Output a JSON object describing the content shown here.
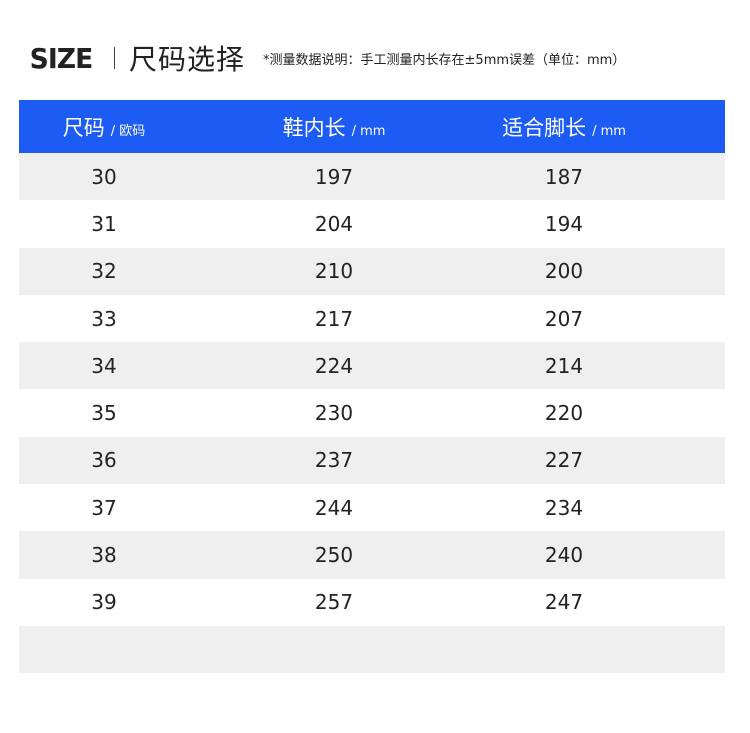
{
  "header": {
    "logo": "SIZE",
    "title": "尺码选择",
    "note": "*测量数据说明：手工测量内长存在±5mm误差（单位：mm）"
  },
  "table": {
    "columns": [
      {
        "name": "尺码",
        "unit": "/ 欧码"
      },
      {
        "name": "鞋内长",
        "unit": "/ mm"
      },
      {
        "name": "适合脚长",
        "unit": "/ mm"
      }
    ],
    "rows": [
      [
        30,
        197,
        187
      ],
      [
        31,
        204,
        194
      ],
      [
        32,
        210,
        200
      ],
      [
        33,
        217,
        207
      ],
      [
        34,
        224,
        214
      ],
      [
        35,
        230,
        220
      ],
      [
        36,
        237,
        227
      ],
      [
        37,
        244,
        234
      ],
      [
        38,
        250,
        240
      ],
      [
        39,
        257,
        247
      ]
    ]
  }
}
